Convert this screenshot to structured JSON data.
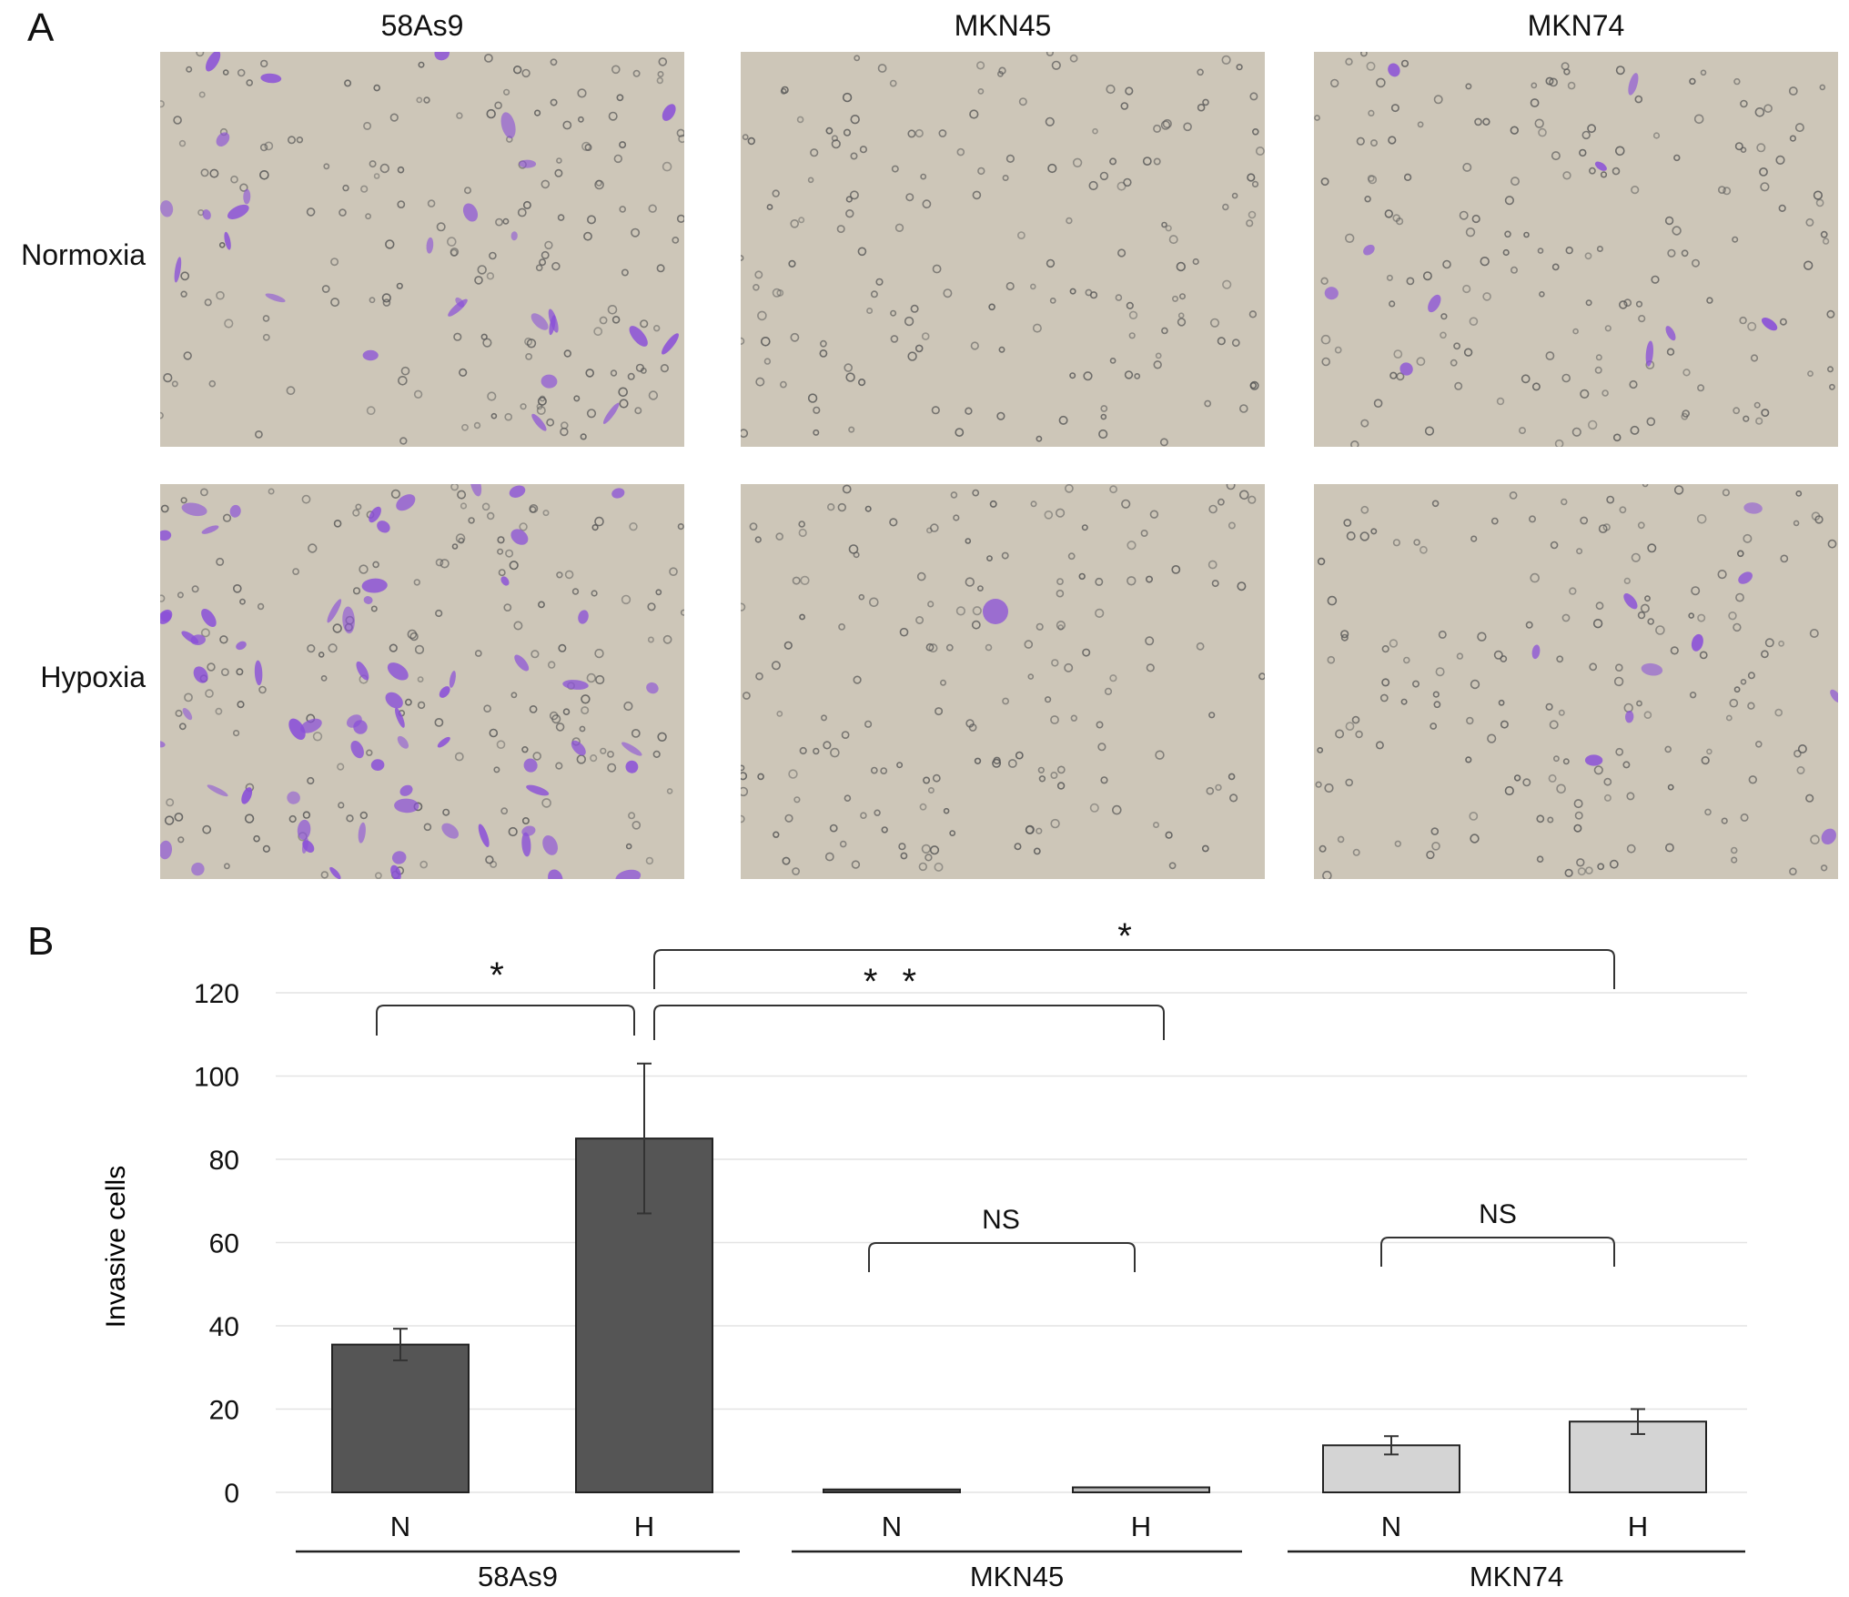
{
  "figure": {
    "panel_a_label": "A",
    "panel_b_label": "B",
    "columns": [
      "58As9",
      "MKN45",
      "MKN74"
    ],
    "rows": [
      "Normoxia",
      "Hypoxia"
    ],
    "micrographs": [
      {
        "cell_line": "58As9",
        "condition": "Normoxia",
        "stained_cells": "moderate"
      },
      {
        "cell_line": "MKN45",
        "condition": "Normoxia",
        "stained_cells": "none"
      },
      {
        "cell_line": "MKN74",
        "condition": "Normoxia",
        "stained_cells": "few"
      },
      {
        "cell_line": "58As9",
        "condition": "Hypoxia",
        "stained_cells": "many"
      },
      {
        "cell_line": "MKN45",
        "condition": "Hypoxia",
        "stained_cells": "single"
      },
      {
        "cell_line": "MKN74",
        "condition": "Hypoxia",
        "stained_cells": "few"
      }
    ],
    "colors": {
      "background": "#cdc6b8",
      "stain": "#8a4fd8",
      "pore": "#555555"
    }
  },
  "chart_data": {
    "type": "bar",
    "ylabel": "Invasive cells",
    "ylim": [
      0,
      120
    ],
    "yticks": [
      0,
      20,
      40,
      60,
      80,
      100,
      120
    ],
    "grid": true,
    "categories": [
      "N",
      "H",
      "N",
      "H",
      "N",
      "H"
    ],
    "groups": [
      "58As9",
      "MKN45",
      "MKN74"
    ],
    "values": [
      35.5,
      85,
      0.7,
      1.2,
      11.3,
      17
    ],
    "errors": [
      3.8,
      18,
      0.2,
      0.3,
      2.2,
      3
    ],
    "bar_colors": [
      "#555555",
      "#555555",
      "#555555",
      "#bbbbbb",
      "#d4d4d4",
      "#d4d4d4"
    ],
    "significance": [
      {
        "from": 0,
        "to": 1,
        "label": "*"
      },
      {
        "from": 1,
        "to": 3,
        "label": "* *"
      },
      {
        "from": 1,
        "to": 5,
        "label": "*"
      },
      {
        "from": 2,
        "to": 3,
        "label": "NS"
      },
      {
        "from": 4,
        "to": 5,
        "label": "NS"
      }
    ]
  }
}
